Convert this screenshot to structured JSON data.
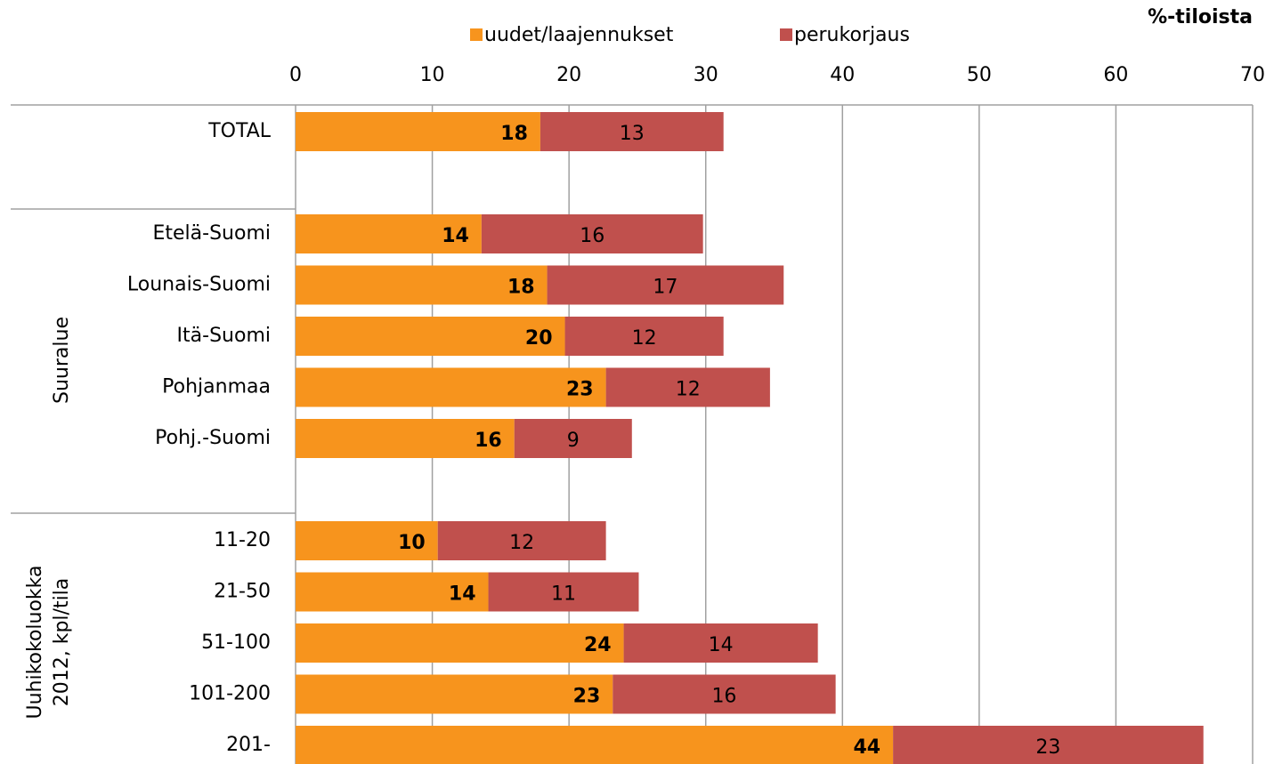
{
  "chart_data": {
    "type": "stacked-barh",
    "unit_label": "%-tiloista",
    "categories": [
      "TOTAL",
      null,
      "Etelä-Suomi",
      "Lounais-Suomi",
      "Itä-Suomi",
      "Pohjanmaa",
      "Pohj.-Suomi",
      null,
      "11-20",
      "21-50",
      "51-100",
      "101-200",
      "201-"
    ],
    "groups": [
      {
        "label": [
          "Suuralue"
        ]
      },
      {
        "label": [
          "Uuhikokoluokka",
          "2012, kpl/tila"
        ]
      }
    ],
    "series": [
      {
        "name": "uudet/laajennukset",
        "color": "#f7941d",
        "values": [
          17.9,
          null,
          13.6,
          18.4,
          19.7,
          22.7,
          16.0,
          null,
          10.4,
          14.1,
          24.0,
          23.2,
          43.7
        ],
        "value_labels": [
          "18",
          null,
          "14",
          "18",
          "20",
          "23",
          "16",
          null,
          "10",
          "14",
          "24",
          "23",
          "44"
        ]
      },
      {
        "name": "perukorjaus",
        "color": "#c0504d",
        "values": [
          13.4,
          null,
          16.2,
          17.3,
          11.6,
          12.0,
          8.6,
          null,
          12.3,
          11.0,
          14.2,
          16.3,
          22.7
        ],
        "value_labels": [
          "13",
          null,
          "16",
          "17",
          "12",
          "12",
          "9",
          null,
          "12",
          "11",
          "14",
          "16",
          "23"
        ]
      }
    ],
    "xlim": [
      0,
      70
    ],
    "xticks": [
      0,
      10,
      20,
      30,
      40,
      50,
      60,
      70
    ],
    "grid": true,
    "legend": "top"
  }
}
